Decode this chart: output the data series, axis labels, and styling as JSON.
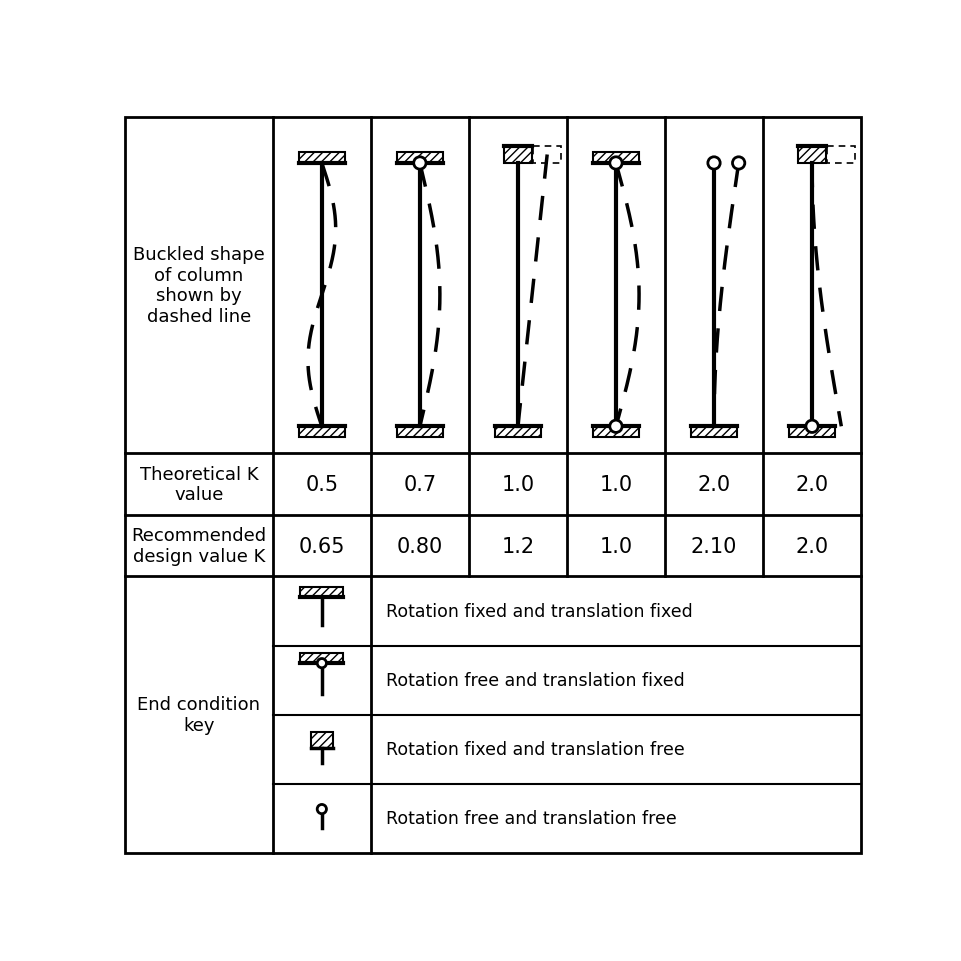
{
  "fig_w": 9.62,
  "fig_h": 9.62,
  "dpi": 100,
  "bg": "#ffffff",
  "theoretical_k": [
    "0.5",
    "0.7",
    "1.0",
    "1.0",
    "2.0",
    "2.0"
  ],
  "recommended_k": [
    "0.65",
    "0.80",
    "1.2",
    "1.0",
    "2.10",
    "2.0"
  ],
  "label_buckled": "Buckled shape\nof column\nshown by\ndashed line",
  "label_theoretical": "Theoretical K\nvalue",
  "label_recommended": "Recommended\ndesign value K",
  "label_end_condition": "End condition\nkey",
  "key_labels": [
    "Rotation fixed and translation fixed",
    "Rotation free and translation fixed",
    "Rotation fixed and translation free",
    "Rotation free and translation free"
  ],
  "fs_label": 13,
  "fs_value": 15,
  "fs_key": 12.5
}
